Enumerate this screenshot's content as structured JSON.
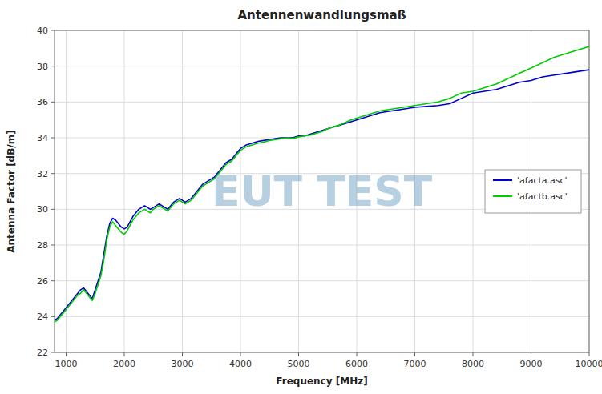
{
  "chart_data": {
    "type": "line",
    "title": "Antennenwandlungsmaß",
    "x_label": "Frequency [MHz]",
    "y_label": "Antenna Factor [dB/m]",
    "annotations": [
      "EUT TEST"
    ],
    "xlim": [
      800,
      10000
    ],
    "ylim": [
      22,
      40
    ],
    "xticks": [
      1000,
      2000,
      3000,
      4000,
      5000,
      6000,
      7000,
      8000,
      9000,
      10000
    ],
    "yticks": [
      22,
      24,
      26,
      28,
      30,
      32,
      34,
      36,
      38,
      40
    ],
    "grid": true,
    "legend": "right",
    "x": [
      800,
      850,
      900,
      950,
      1000,
      1050,
      1100,
      1150,
      1200,
      1250,
      1300,
      1350,
      1400,
      1450,
      1500,
      1550,
      1600,
      1650,
      1700,
      1750,
      1800,
      1850,
      1900,
      1950,
      2000,
      2050,
      2100,
      2150,
      2200,
      2250,
      2300,
      2350,
      2400,
      2450,
      2500,
      2550,
      2600,
      2650,
      2700,
      2750,
      2800,
      2850,
      2900,
      2950,
      3000,
      3050,
      3100,
      3150,
      3200,
      3250,
      3300,
      3350,
      3400,
      3450,
      3500,
      3550,
      3600,
      3650,
      3700,
      3750,
      3800,
      3850,
      3900,
      3950,
      4000,
      4100,
      4200,
      4300,
      4400,
      4500,
      4600,
      4700,
      4800,
      4900,
      5000,
      5100,
      5200,
      5300,
      5400,
      5500,
      5600,
      5700,
      5800,
      5900,
      6000,
      6200,
      6400,
      6600,
      6800,
      7000,
      7200,
      7400,
      7600,
      7800,
      8000,
      8200,
      8400,
      8600,
      8800,
      9000,
      9200,
      9400,
      9600,
      9800,
      10000
    ],
    "series": [
      {
        "name": "'afacta.asc'",
        "color": "#0000cc",
        "values": [
          23.8,
          23.9,
          24.1,
          24.3,
          24.5,
          24.7,
          24.9,
          25.1,
          25.3,
          25.5,
          25.6,
          25.4,
          25.2,
          25.0,
          25.5,
          26.0,
          26.5,
          27.5,
          28.5,
          29.2,
          29.5,
          29.4,
          29.2,
          29.0,
          28.9,
          29.0,
          29.3,
          29.6,
          29.8,
          30.0,
          30.1,
          30.2,
          30.1,
          30.0,
          30.1,
          30.2,
          30.3,
          30.2,
          30.1,
          30.0,
          30.2,
          30.4,
          30.5,
          30.6,
          30.5,
          30.4,
          30.5,
          30.6,
          30.8,
          31.0,
          31.2,
          31.4,
          31.5,
          31.6,
          31.7,
          31.8,
          32.0,
          32.2,
          32.4,
          32.6,
          32.7,
          32.8,
          33.0,
          33.2,
          33.4,
          33.6,
          33.7,
          33.8,
          33.85,
          33.9,
          33.95,
          34.0,
          34.0,
          34.0,
          34.1,
          34.1,
          34.2,
          34.3,
          34.4,
          34.5,
          34.6,
          34.7,
          34.8,
          34.9,
          35.0,
          35.2,
          35.4,
          35.5,
          35.6,
          35.7,
          35.75,
          35.8,
          35.9,
          36.2,
          36.5,
          36.6,
          36.7,
          36.9,
          37.1,
          37.2,
          37.4,
          37.5,
          37.6,
          37.7,
          37.8
        ]
      },
      {
        "name": "'afactb.asc'",
        "color": "#00cc00",
        "values": [
          23.7,
          23.8,
          24.0,
          24.2,
          24.4,
          24.6,
          24.8,
          25.0,
          25.2,
          25.3,
          25.5,
          25.3,
          25.1,
          24.9,
          25.3,
          25.8,
          26.3,
          27.2,
          28.3,
          29.0,
          29.3,
          29.1,
          28.9,
          28.7,
          28.6,
          28.8,
          29.1,
          29.4,
          29.6,
          29.8,
          29.9,
          30.0,
          29.9,
          29.8,
          30.0,
          30.1,
          30.2,
          30.1,
          30.0,
          29.9,
          30.1,
          30.3,
          30.4,
          30.5,
          30.4,
          30.3,
          30.4,
          30.5,
          30.7,
          30.9,
          31.1,
          31.3,
          31.4,
          31.5,
          31.6,
          31.7,
          31.9,
          32.1,
          32.3,
          32.5,
          32.6,
          32.7,
          32.9,
          33.1,
          33.3,
          33.5,
          33.6,
          33.7,
          33.75,
          33.85,
          33.9,
          33.95,
          34.0,
          33.95,
          34.05,
          34.1,
          34.15,
          34.25,
          34.35,
          34.5,
          34.6,
          34.7,
          34.85,
          35.0,
          35.1,
          35.3,
          35.5,
          35.6,
          35.7,
          35.8,
          35.9,
          36.0,
          36.2,
          36.5,
          36.6,
          36.8,
          37.0,
          37.3,
          37.6,
          37.9,
          38.2,
          38.5,
          38.7,
          38.9,
          39.1
        ]
      }
    ]
  }
}
